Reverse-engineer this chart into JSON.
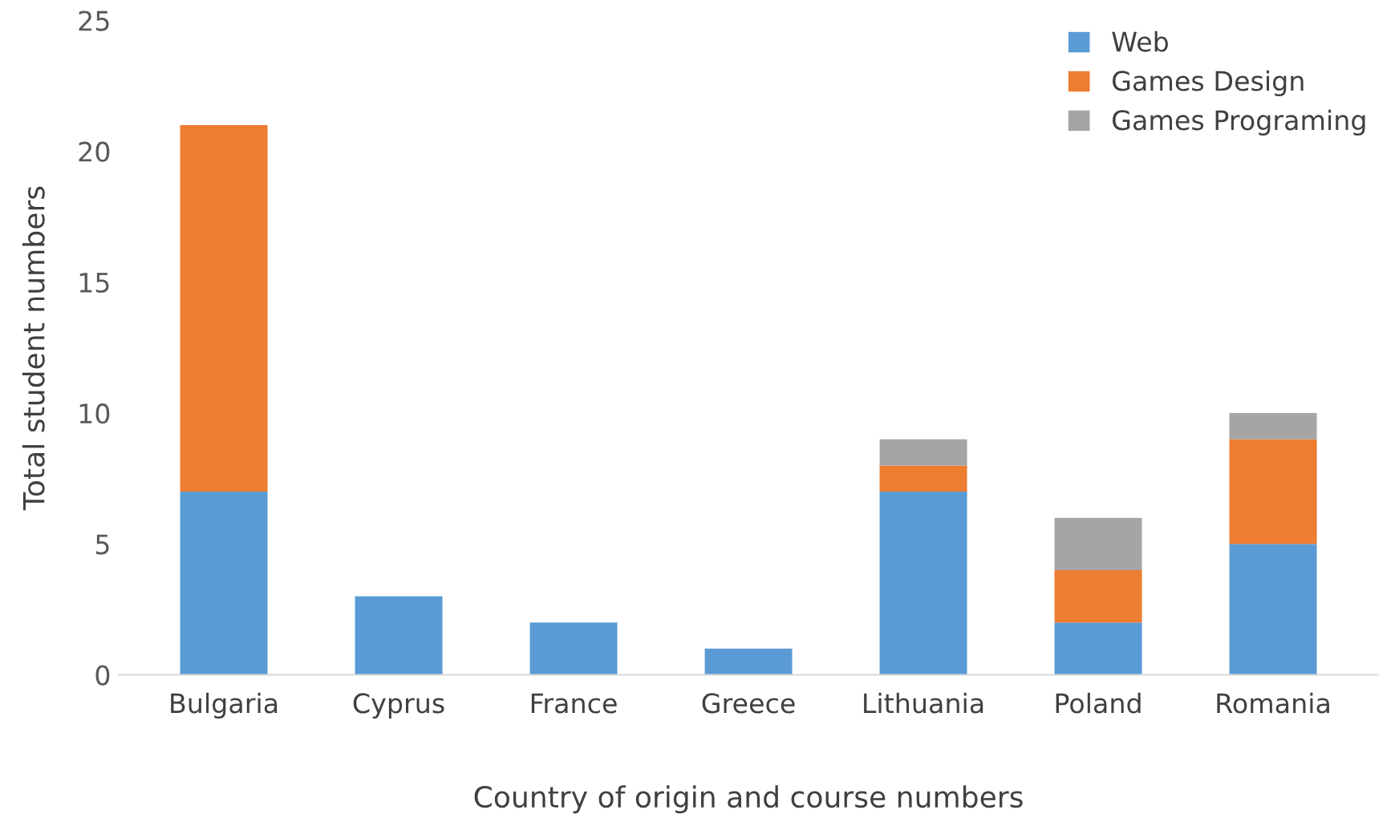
{
  "chart_data": {
    "type": "bar",
    "stacked": true,
    "xlabel": "Country of origin and course numbers",
    "ylabel": "Total student numbers",
    "categories": [
      "Bulgaria",
      "Cyprus",
      "France",
      "Greece",
      "Lithuania",
      "Poland",
      "Romania"
    ],
    "series": [
      {
        "name": "Web",
        "color": "#5b9bd5",
        "values": [
          7,
          3,
          2,
          1,
          7,
          2,
          5
        ]
      },
      {
        "name": "Games Design",
        "color": "#ed7d31",
        "values": [
          14,
          null,
          null,
          null,
          1,
          2,
          4
        ]
      },
      {
        "name": "Games Programing",
        "color": "#a5a5a5",
        "values": [
          null,
          null,
          null,
          null,
          1,
          2,
          1
        ]
      }
    ],
    "ylim": [
      0,
      25
    ],
    "yticks": [
      0,
      5,
      10,
      15,
      20,
      25
    ],
    "grid": false,
    "legend": "top right"
  }
}
